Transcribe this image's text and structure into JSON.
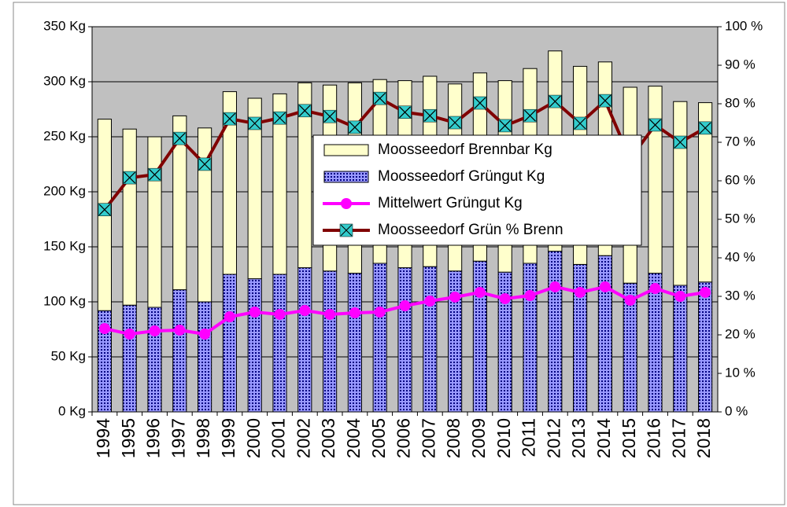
{
  "chart_data": {
    "type": "bar",
    "categories": [
      "1994",
      "1995",
      "1996",
      "1997",
      "1998",
      "1999",
      "2000",
      "2001",
      "2002",
      "2003",
      "2004",
      "2005",
      "2006",
      "2007",
      "2008",
      "2009",
      "2010",
      "2011",
      "2012",
      "2013",
      "2014",
      "2015",
      "2016",
      "2017",
      "2018"
    ],
    "series": [
      {
        "name": "Moosseedorf Brennbar Kg",
        "type": "bar",
        "stack": true,
        "color": "#ffffcc",
        "values": [
          174,
          160,
          155,
          158,
          158,
          166,
          164,
          164,
          168,
          169,
          173,
          167,
          170,
          173,
          170,
          171,
          174,
          177,
          182,
          180,
          176,
          178,
          170,
          167,
          163
        ]
      },
      {
        "name": "Moosseedorf Grüngut Kg",
        "type": "bar",
        "stack": true,
        "color": "#9999ff",
        "values": [
          92,
          97,
          95,
          111,
          100,
          125,
          121,
          125,
          131,
          128,
          126,
          135,
          131,
          132,
          128,
          137,
          127,
          135,
          146,
          134,
          142,
          117,
          126,
          115,
          118
        ]
      },
      {
        "name": "Mittelwert Grüngut Kg",
        "type": "line",
        "color": "#ff00ff",
        "marker": "circle",
        "values": [
          75.7,
          70.7,
          73.6,
          74.3,
          70.7,
          86.4,
          90.7,
          88.6,
          92.1,
          88.6,
          90,
          90.7,
          96.4,
          100.7,
          104.3,
          108.6,
          102.9,
          105.7,
          113.6,
          108.6,
          113.6,
          101.4,
          112.1,
          105,
          108.6
        ]
      },
      {
        "name": "Moosseedorf Grün % Brenn",
        "type": "line",
        "axis": "y2",
        "color": "#800000",
        "marker": "x-square",
        "marker_color": "#33cccc",
        "values": [
          52.5,
          60.8,
          61.6,
          71,
          64.3,
          76.1,
          74.9,
          76.3,
          78.2,
          76.7,
          73.9,
          81.4,
          77.8,
          76.9,
          75.1,
          80.2,
          74.3,
          76.9,
          80.6,
          74.9,
          80.8,
          65.7,
          74.5,
          70,
          73.7
        ]
      }
    ],
    "ylim": [
      0,
      350
    ],
    "yticks": [
      {
        "value": 0,
        "label": "0 Kg"
      },
      {
        "value": 50,
        "label": "50 Kg"
      },
      {
        "value": 100,
        "label": "100 Kg"
      },
      {
        "value": 150,
        "label": "150 Kg"
      },
      {
        "value": 200,
        "label": "200 Kg"
      },
      {
        "value": 250,
        "label": "250 Kg"
      },
      {
        "value": 300,
        "label": "300 Kg"
      },
      {
        "value": 350,
        "label": "350 Kg"
      }
    ],
    "y2lim": [
      0,
      100
    ],
    "y2ticks": [
      {
        "value": 0,
        "label": "0 %"
      },
      {
        "value": 10,
        "label": "10 %"
      },
      {
        "value": 20,
        "label": "20 %"
      },
      {
        "value": 30,
        "label": "30 %"
      },
      {
        "value": 40,
        "label": "40 %"
      },
      {
        "value": 50,
        "label": "50 %"
      },
      {
        "value": 60,
        "label": "60 %"
      },
      {
        "value": 70,
        "label": "70 %"
      },
      {
        "value": 80,
        "label": "80 %"
      },
      {
        "value": 90,
        "label": "90 %"
      },
      {
        "value": 100,
        "label": "100 %"
      }
    ],
    "grid": true,
    "background": "#c0c0c0",
    "legend": "center-right"
  }
}
